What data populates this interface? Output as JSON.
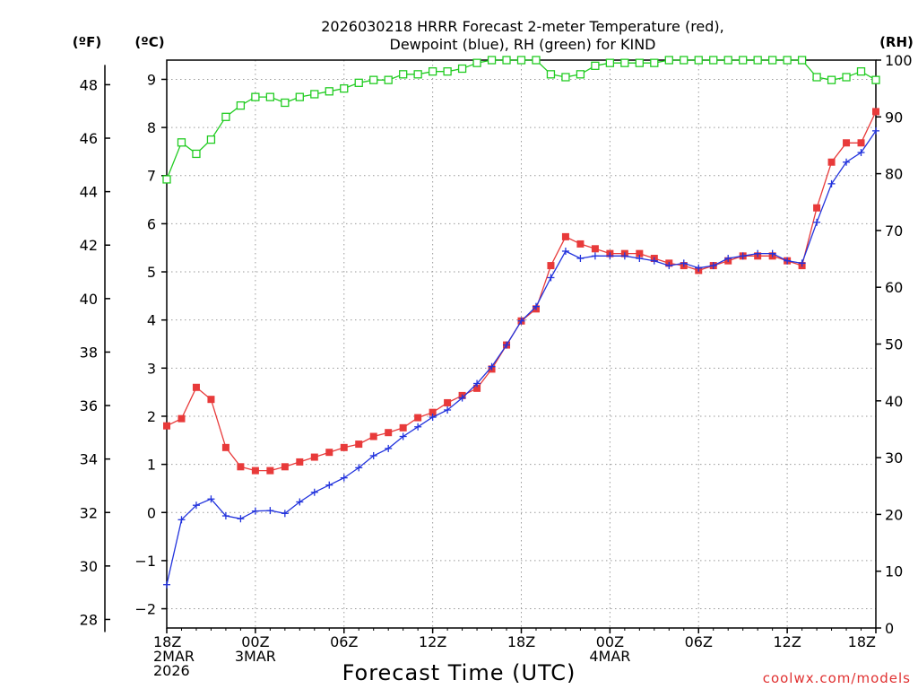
{
  "chart_data": {
    "type": "line",
    "title_line1": "2026030218 HRRR Forecast 2-meter Temperature (red),",
    "title_line2": "Dewpoint (blue), RH (green) for KIND",
    "unit_left_f": "(ºF)",
    "unit_left_c": "(ºC)",
    "unit_right": "(RH)",
    "xlabel": "Forecast Time (UTC)",
    "credit": "coolwx.com/models",
    "hours_range": [
      0,
      48
    ],
    "c_range": [
      -2.4,
      9.4
    ],
    "rh_range": [
      0,
      100
    ],
    "x_ticks": [
      {
        "hour": 0,
        "lines": [
          "18Z",
          "2MAR",
          "2026"
        ]
      },
      {
        "hour": 6,
        "lines": [
          "00Z",
          "3MAR"
        ]
      },
      {
        "hour": 12,
        "lines": [
          "06Z"
        ]
      },
      {
        "hour": 18,
        "lines": [
          "12Z"
        ]
      },
      {
        "hour": 24,
        "lines": [
          "18Z"
        ]
      },
      {
        "hour": 30,
        "lines": [
          "00Z",
          "4MAR"
        ]
      },
      {
        "hour": 36,
        "lines": [
          "06Z"
        ]
      },
      {
        "hour": 42,
        "lines": [
          "12Z"
        ]
      },
      {
        "hour": 48,
        "lines": [
          "18Z"
        ]
      }
    ],
    "c_ticks": [
      "−2",
      "−1",
      "0",
      "1",
      "2",
      "3",
      "4",
      "5",
      "6",
      "7",
      "8",
      "9"
    ],
    "f_ticks": [
      "28",
      "30",
      "32",
      "34",
      "36",
      "38",
      "40",
      "42",
      "44",
      "46",
      "48"
    ],
    "rh_ticks": [
      "0",
      "10",
      "20",
      "30",
      "40",
      "50",
      "60",
      "70",
      "80",
      "90",
      "100"
    ],
    "series": [
      {
        "name": "Temperature",
        "unit": "C",
        "color": "#e83a3a",
        "marker": "filled-square",
        "values": [
          1.8,
          1.95,
          2.6,
          2.35,
          1.35,
          0.95,
          0.87,
          0.87,
          0.95,
          1.05,
          1.15,
          1.25,
          1.35,
          1.42,
          1.58,
          1.66,
          1.76,
          1.97,
          2.08,
          2.28,
          2.43,
          2.58,
          2.98,
          3.48,
          3.98,
          4.23,
          5.13,
          5.73,
          5.58,
          5.48,
          5.38,
          5.38,
          5.38,
          5.28,
          5.18,
          5.13,
          5.03,
          5.13,
          5.23,
          5.33,
          5.33,
          5.33,
          5.23,
          5.13,
          6.33,
          7.28,
          7.68,
          7.68,
          8.33
        ]
      },
      {
        "name": "Dewpoint",
        "unit": "C",
        "color": "#2233dd",
        "marker": "plus",
        "values": [
          -1.5,
          -0.15,
          0.15,
          0.28,
          -0.07,
          -0.13,
          0.03,
          0.04,
          -0.02,
          0.22,
          0.42,
          0.57,
          0.72,
          0.93,
          1.18,
          1.33,
          1.58,
          1.78,
          1.98,
          2.13,
          2.38,
          2.68,
          3.03,
          3.48,
          3.98,
          4.28,
          4.88,
          5.43,
          5.28,
          5.33,
          5.33,
          5.33,
          5.28,
          5.23,
          5.13,
          5.18,
          5.08,
          5.13,
          5.28,
          5.33,
          5.38,
          5.38,
          5.23,
          5.18,
          6.03,
          6.83,
          7.28,
          7.48,
          7.93
        ]
      },
      {
        "name": "RH",
        "unit": "%",
        "color": "#22cc22",
        "marker": "open-square",
        "values": [
          79,
          85.5,
          83.5,
          86,
          90,
          92,
          93.5,
          93.5,
          92.5,
          93.5,
          94,
          94.5,
          95,
          96,
          96.5,
          96.5,
          97.5,
          97.5,
          98,
          98,
          98.5,
          99.5,
          100,
          100,
          100,
          100,
          97.5,
          97,
          97.5,
          99,
          99.5,
          99.5,
          99.5,
          99.5,
          100,
          100,
          100,
          100,
          100,
          100,
          100,
          100,
          100,
          100,
          97,
          96.5,
          97,
          98,
          96.5
        ]
      }
    ]
  }
}
